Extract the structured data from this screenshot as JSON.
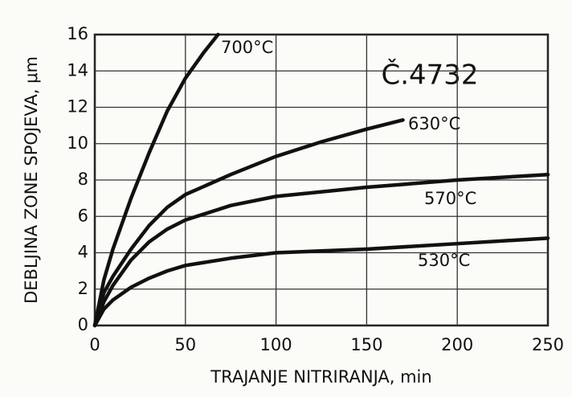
{
  "chart_data": {
    "type": "line",
    "annotation": "Č.4732",
    "xlabel": "TRAJANJE  NITRIRANJA, min",
    "ylabel": "DEBLJINA  ZONE  SPOJEVA, μm",
    "xlim": [
      0,
      250
    ],
    "ylim": [
      0,
      16
    ],
    "xticks": [
      0,
      50,
      100,
      150,
      200,
      250
    ],
    "yticks": [
      0,
      2,
      4,
      6,
      8,
      10,
      12,
      14,
      16
    ],
    "grid": true,
    "series": [
      {
        "name": "700°C",
        "color": "#111111",
        "x": [
          0,
          5,
          10,
          20,
          30,
          40,
          50,
          60,
          68
        ],
        "values": [
          0,
          2.5,
          4.2,
          7,
          9.5,
          11.8,
          13.6,
          15,
          16
        ]
      },
      {
        "name": "630°C",
        "color": "#111111",
        "x": [
          0,
          5,
          10,
          20,
          30,
          40,
          50,
          75,
          100,
          125,
          150,
          170
        ],
        "values": [
          0,
          1.8,
          2.7,
          4.2,
          5.5,
          6.5,
          7.2,
          8.3,
          9.3,
          10.1,
          10.8,
          11.3
        ]
      },
      {
        "name": "570°C",
        "color": "#111111",
        "x": [
          0,
          5,
          10,
          20,
          30,
          40,
          50,
          75,
          100,
          150,
          200,
          250
        ],
        "values": [
          0,
          1.3,
          2.2,
          3.6,
          4.6,
          5.3,
          5.8,
          6.6,
          7.1,
          7.6,
          8.0,
          8.3
        ]
      },
      {
        "name": "530°C",
        "color": "#111111",
        "x": [
          0,
          5,
          10,
          20,
          30,
          40,
          50,
          75,
          100,
          150,
          200,
          250
        ],
        "values": [
          0,
          0.9,
          1.4,
          2.1,
          2.6,
          3,
          3.3,
          3.7,
          4,
          4.2,
          4.5,
          4.8
        ]
      }
    ]
  }
}
